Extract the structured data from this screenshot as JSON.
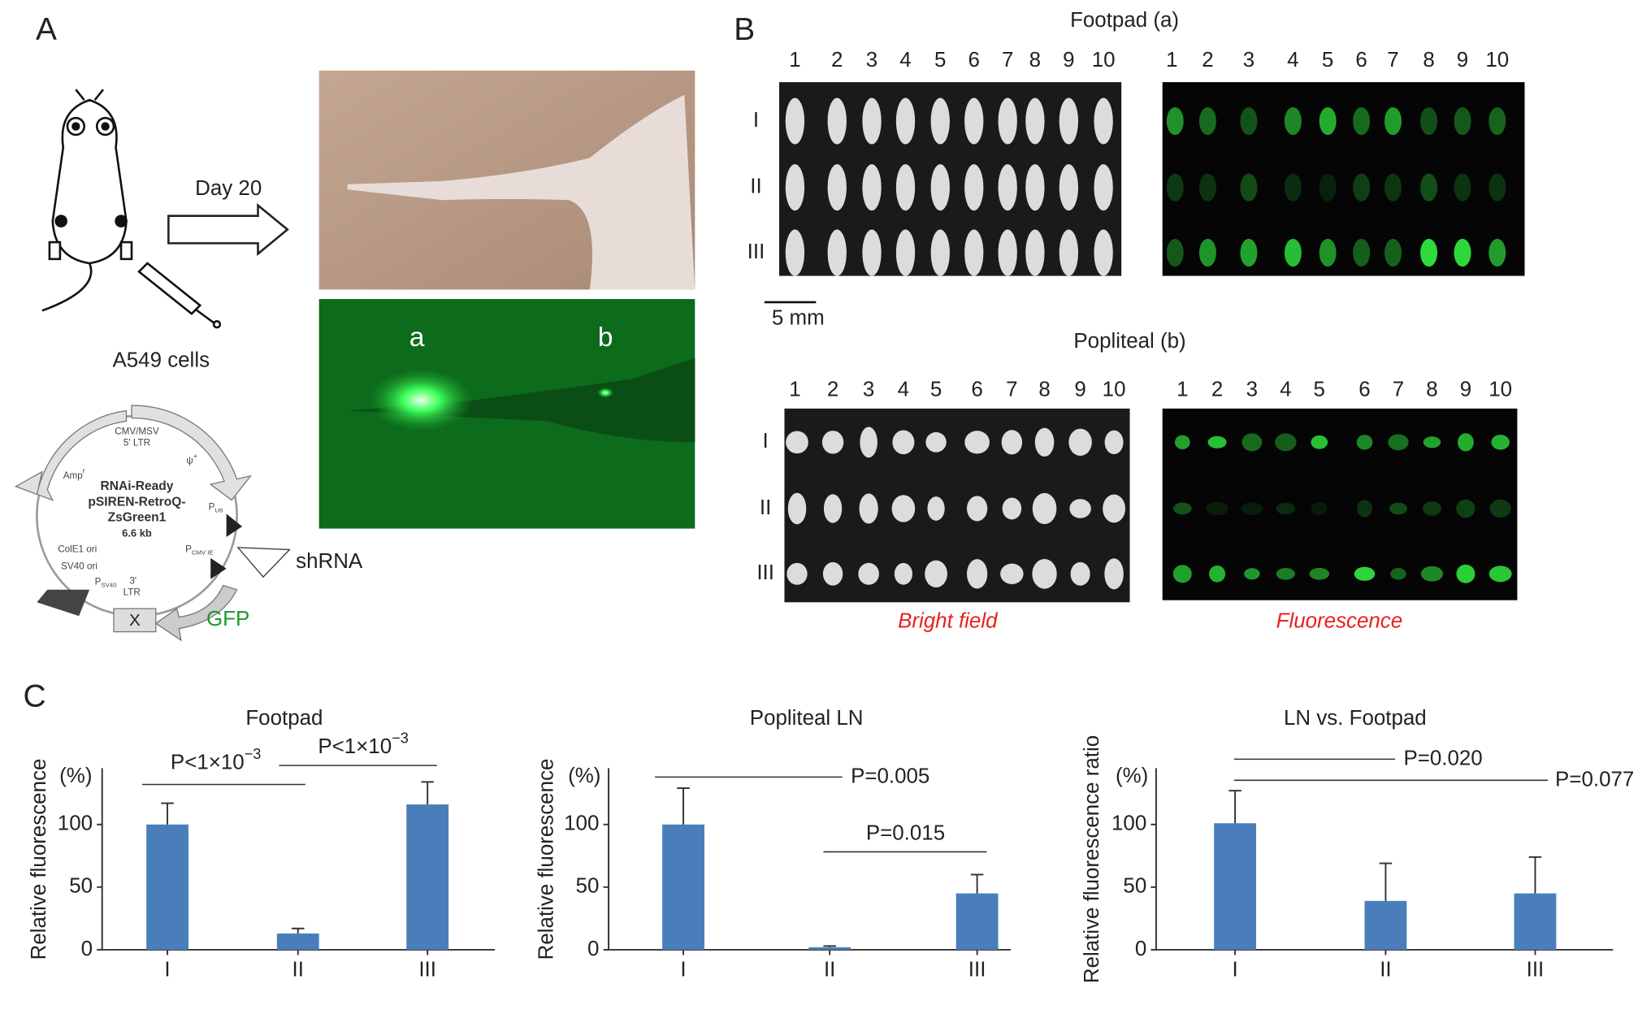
{
  "panels": {
    "A": {
      "label": "A",
      "arrow_label": "Day 20",
      "cells": "A549 cells",
      "photo_labels": [
        "a",
        "b"
      ],
      "plasmid": {
        "name": [
          "RNAi-Ready",
          "pSIREN-RetroQ-",
          "ZsGreen1"
        ],
        "size": "6.6 kb",
        "features": [
          "CMV/MSV",
          "5' LTR",
          "Amp",
          "r",
          "ψ",
          "+",
          "P",
          "U6",
          "P",
          "CMV IE",
          "ColE1 ori",
          "SV40 ori",
          "P",
          "SV40",
          "3'",
          "LTR",
          "X"
        ]
      },
      "shrna": "shRNA",
      "gfp": "GFP"
    },
    "B": {
      "label": "B",
      "titles": [
        "Footpad (a)",
        "Popliteal (b)"
      ],
      "columns": [
        "1",
        "2",
        "3",
        "4",
        "5",
        "6",
        "7",
        "8",
        "9",
        "10"
      ],
      "rows": [
        "I",
        "II",
        "III"
      ],
      "scale_bar": "5 mm",
      "modes": [
        "Bright field",
        "Fluorescence"
      ]
    },
    "C": {
      "label": "C"
    }
  },
  "chart_data": [
    {
      "type": "bar",
      "title": "Footpad",
      "y_label": "Relative fluorescence",
      "y_unit": "(%)",
      "categories": [
        "I",
        "II",
        "III"
      ],
      "values": [
        100,
        13,
        116
      ],
      "errors": [
        17,
        4,
        18
      ],
      "color": "#4a7ebb",
      "ylim": [
        0,
        145
      ],
      "yticks": [
        0,
        50,
        100
      ],
      "annotations": [
        {
          "text": "P<1×10",
          "superscript": "−3"
        },
        {
          "text": "P<1×10",
          "superscript": "−3"
        }
      ]
    },
    {
      "type": "bar",
      "title": "Popliteal LN",
      "y_label": "Relative fluorescence",
      "y_unit": "(%)",
      "categories": [
        "I",
        "II",
        "III"
      ],
      "values": [
        100,
        2,
        45
      ],
      "errors": [
        29,
        1,
        15
      ],
      "color": "#4a7ebb",
      "ylim": [
        0,
        145
      ],
      "yticks": [
        0,
        50,
        100
      ],
      "annotations": [
        {
          "text": "P=0.005"
        },
        {
          "text": "P=0.015"
        }
      ]
    },
    {
      "type": "bar",
      "title": "LN vs. Footpad",
      "y_label": "Relative fluorescence ratio",
      "y_unit": "(%)",
      "categories": [
        "I",
        "II",
        "III"
      ],
      "values": [
        101,
        39,
        45
      ],
      "errors": [
        26,
        30,
        29
      ],
      "color": "#4a7ebb",
      "ylim": [
        0,
        145
      ],
      "yticks": [
        0,
        50,
        100
      ],
      "annotations": [
        {
          "text": "P=0.020"
        },
        {
          "text": "P=0.077"
        }
      ]
    }
  ]
}
